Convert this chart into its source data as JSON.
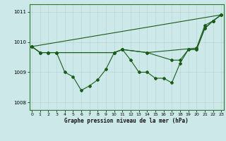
{
  "title": "Graphe pression niveau de la mer (hPa)",
  "bg_color": "#cce8e8",
  "grid_color": "#b8d4d4",
  "line_color": "#1a5c1a",
  "ylim": [
    1007.75,
    1011.25
  ],
  "xlim": [
    -0.3,
    23.3
  ],
  "yticks": [
    1008,
    1009,
    1010,
    1011
  ],
  "xticks": [
    0,
    1,
    2,
    3,
    4,
    5,
    6,
    7,
    8,
    9,
    10,
    11,
    12,
    13,
    14,
    15,
    16,
    17,
    18,
    19,
    20,
    21,
    22,
    23
  ],
  "line1_x": [
    0,
    1,
    2,
    3,
    4,
    5,
    6,
    7,
    8,
    9,
    10,
    11,
    12,
    13,
    14,
    15,
    16,
    17,
    18,
    19,
    20,
    21,
    22,
    23
  ],
  "line1_y": [
    1009.85,
    1009.65,
    1009.65,
    1009.65,
    1009.0,
    1008.85,
    1008.4,
    1008.55,
    1008.75,
    1009.1,
    1009.65,
    1009.75,
    1009.4,
    1009.0,
    1009.0,
    1008.8,
    1008.8,
    1008.65,
    1009.3,
    1009.75,
    1009.75,
    1010.45,
    1010.7,
    1010.9
  ],
  "line2_x": [
    0,
    1,
    2,
    3,
    10,
    11,
    14,
    17,
    18,
    19,
    20,
    21,
    22,
    23
  ],
  "line2_y": [
    1009.85,
    1009.65,
    1009.65,
    1009.65,
    1009.65,
    1009.75,
    1009.65,
    1009.4,
    1009.4,
    1009.75,
    1009.75,
    1010.45,
    1010.7,
    1010.9
  ],
  "line3_x": [
    0,
    1,
    2,
    3,
    10,
    11,
    14,
    20,
    21,
    22,
    23
  ],
  "line3_y": [
    1009.85,
    1009.65,
    1009.65,
    1009.65,
    1009.65,
    1009.75,
    1009.65,
    1009.8,
    1010.55,
    1010.7,
    1010.9
  ],
  "line4_x": [
    0,
    23
  ],
  "line4_y": [
    1009.85,
    1010.9
  ]
}
